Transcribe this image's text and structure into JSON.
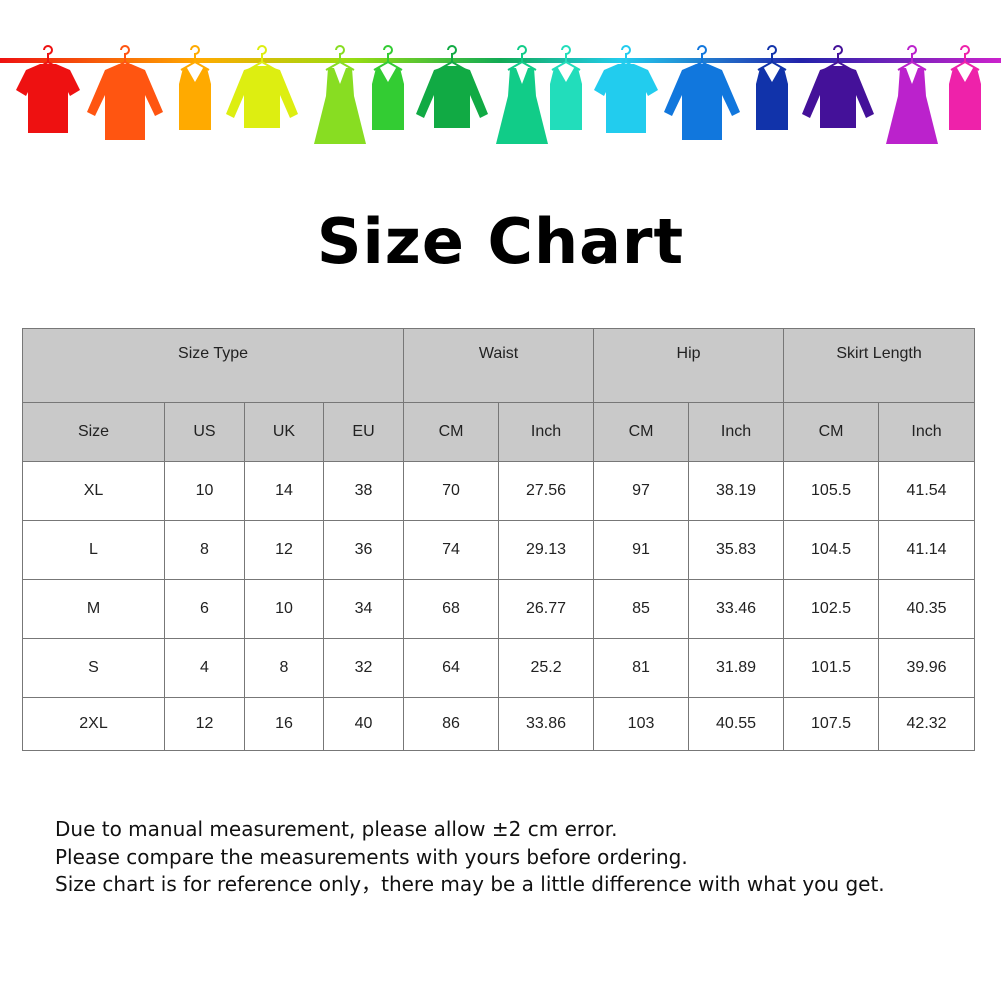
{
  "banner": {
    "icon": "clothes-hanging-on-rod",
    "garments": [
      {
        "type": "tshirt",
        "color": "#ee1111"
      },
      {
        "type": "shirt",
        "color": "#ff5511"
      },
      {
        "type": "tank",
        "color": "#ffaa00"
      },
      {
        "type": "sweater",
        "color": "#ddee11"
      },
      {
        "type": "dress",
        "color": "#88dd22"
      },
      {
        "type": "tank",
        "color": "#33cc33"
      },
      {
        "type": "sweater",
        "color": "#11aa44"
      },
      {
        "type": "dress",
        "color": "#11cc88"
      },
      {
        "type": "tank",
        "color": "#22ddbb"
      },
      {
        "type": "tshirt",
        "color": "#22ccee"
      },
      {
        "type": "shirt",
        "color": "#1177dd"
      },
      {
        "type": "tank",
        "color": "#1133aa"
      },
      {
        "type": "sweater",
        "color": "#441199"
      },
      {
        "type": "dress",
        "color": "#bb22cc"
      },
      {
        "type": "tank",
        "color": "#ee22aa"
      }
    ]
  },
  "title": "Size Chart",
  "table": {
    "group_headers": [
      "Size Type",
      "Waist",
      "Hip",
      "Skirt Length"
    ],
    "sub_headers": [
      "Size",
      "US",
      "UK",
      "EU",
      "CM",
      "Inch",
      "CM",
      "Inch",
      "CM",
      "Inch"
    ],
    "rows": [
      [
        "XL",
        "10",
        "14",
        "38",
        "70",
        "27.56",
        "97",
        "38.19",
        "105.5",
        "41.54"
      ],
      [
        "L",
        "8",
        "12",
        "36",
        "74",
        "29.13",
        "91",
        "35.83",
        "104.5",
        "41.14"
      ],
      [
        "M",
        "6",
        "10",
        "34",
        "68",
        "26.77",
        "85",
        "33.46",
        "102.5",
        "40.35"
      ],
      [
        "S",
        "4",
        "8",
        "32",
        "64",
        "25.2",
        "81",
        "31.89",
        "101.5",
        "39.96"
      ],
      [
        "2XL",
        "12",
        "16",
        "40",
        "86",
        "33.86",
        "103",
        "40.55",
        "107.5",
        "42.32"
      ]
    ]
  },
  "notes": [
    "Due to manual measurement, please allow ±2 cm error.",
    "Please compare the measurements with yours before ordering.",
    "Size chart is for reference only，there may be a little difference with what you get."
  ]
}
